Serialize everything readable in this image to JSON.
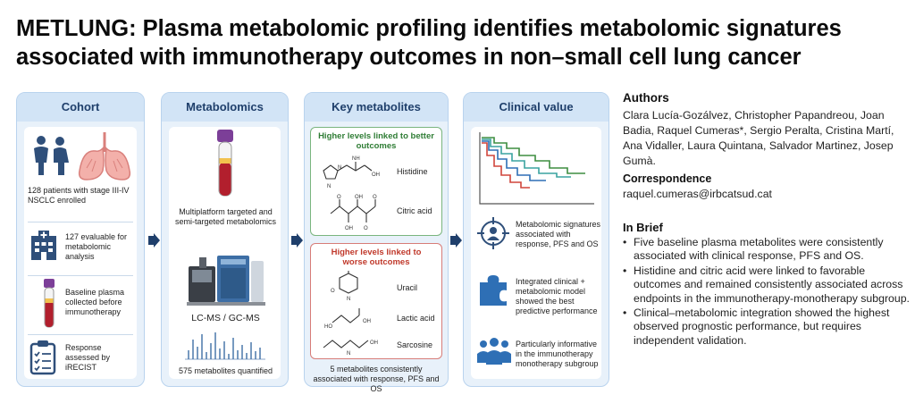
{
  "title": {
    "line1": "METLUNG: Plasma metabolomic profiling identifies metabolomic signatures",
    "line2": "associated with immunotherapy outcomes in non–small cell lung cancer"
  },
  "cohort": {
    "header": "Cohort",
    "patients": "128 patients with stage III-IV NSCLC enrolled",
    "evaluable": "127 evaluable for metabolomic analysis",
    "plasma": "Baseline plasma collected before immunotherapy",
    "response": "Response assessed by iRECIST"
  },
  "metabolomics": {
    "header": "Metabolomics",
    "platform": "Multiplatform targeted and semi-targeted metabolomics",
    "instruments": "LC-MS / GC-MS",
    "quantified": "575 metabolites quantified"
  },
  "key": {
    "header": "Key metabolites",
    "better_title": "Higher levels linked to better outcomes",
    "better": [
      "Histidine",
      "Citric acid"
    ],
    "worse_title": "Higher levels linked to worse outcomes",
    "worse": [
      "Uracil",
      "Lactic acid",
      "Sarcosine"
    ],
    "footer": "5 metabolites consistently associated with response, PFS and OS"
  },
  "clinical": {
    "header": "Clinical value",
    "signatures": "Metabolomic signatures associated with response, PFS and OS",
    "model": "Integrated clinical + metabolomic model showed the best predictive performance",
    "subgroup": "Particularly informative in the immunotherapy monotherapy subgroup"
  },
  "authors": {
    "heading": "Authors",
    "text": "Clara Lucía-Gozálvez, Christopher Papandreou, Joan Badia, Raquel Cumeras*, Sergio Peralta, Cristina Martí, Ana Vidaller, Laura Quintana, Salvador Martinez, Josep Gumà."
  },
  "correspondence": {
    "heading": "Correspondence",
    "email": "raquel.cumeras@irbcatsud.cat"
  },
  "brief": {
    "heading": "In Brief",
    "items": [
      "Five baseline plasma metabolites were consistently associated with clinical response, PFS and OS.",
      "Histidine and citric acid were linked to favorable outcomes and remained consistently associated across endpoints in the immunotherapy-monotherapy subgroup.",
      "Clinical–metabolomic integration showed the highest observed prognostic performance, but requires independent validation."
    ]
  },
  "colors": {
    "panel": "#e8f1fa",
    "panel_header": "#d2e4f6",
    "navy": "#1f3f6b",
    "good": "#2f7d35",
    "bad": "#c0392b",
    "curve_blue": "#2e6fb5",
    "curve_teal": "#3aa3a0",
    "curve_green": "#3e8e41",
    "curve_red": "#d0453b"
  }
}
